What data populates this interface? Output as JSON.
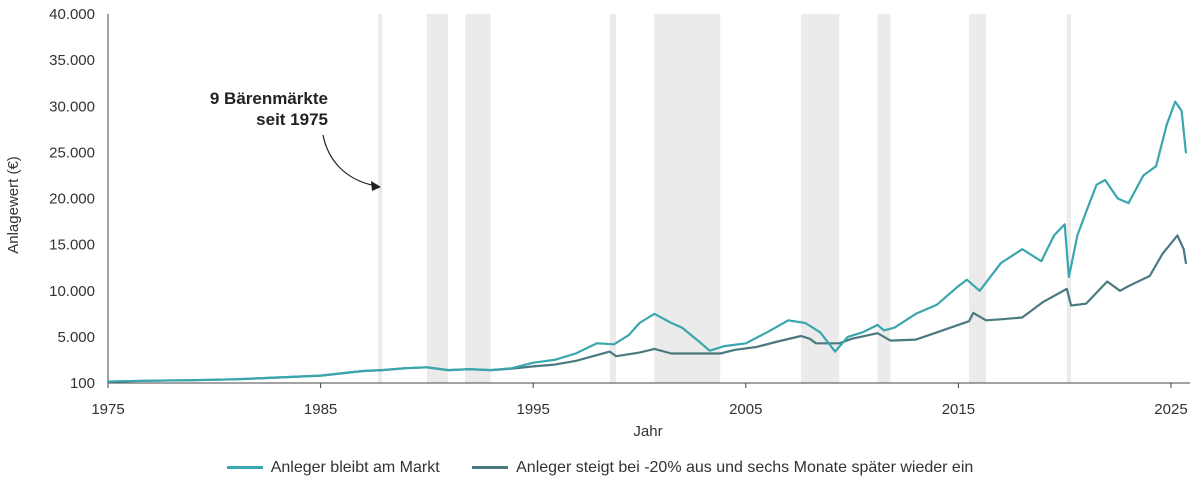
{
  "chart_data": {
    "type": "line",
    "xlabel": "Jahr",
    "ylabel": "Anlagewert (€)",
    "xlim": [
      1975,
      2025.8
    ],
    "ylim": [
      0,
      40000
    ],
    "x_ticks": [
      1975,
      1985,
      1995,
      2005,
      2015,
      2025
    ],
    "y_ticks": [
      {
        "value": 100,
        "label": "100"
      },
      {
        "value": 5000,
        "label": "5.000"
      },
      {
        "value": 10000,
        "label": "10.000"
      },
      {
        "value": 15000,
        "label": "15.000"
      },
      {
        "value": 20000,
        "label": "20.000"
      },
      {
        "value": 25000,
        "label": "25.000"
      },
      {
        "value": 30000,
        "label": "30.000"
      },
      {
        "value": 35000,
        "label": "35.000"
      },
      {
        "value": 40000,
        "label": "40.000"
      }
    ],
    "bear_markets": [
      [
        1987.7,
        1987.9
      ],
      [
        1990.0,
        1991.0
      ],
      [
        1991.8,
        1993.0
      ],
      [
        1998.6,
        1998.9
      ],
      [
        2000.7,
        2003.8
      ],
      [
        2007.6,
        2009.4
      ],
      [
        2011.2,
        2011.8
      ],
      [
        2015.5,
        2016.3
      ],
      [
        2020.1,
        2020.3
      ]
    ],
    "annotation": {
      "lines": [
        "9 Bärenmärkte",
        "seit 1975"
      ]
    },
    "series": [
      {
        "name": "Anleger bleibt am Markt",
        "color": "#3aa6ad",
        "x": [
          1975,
          1977,
          1979,
          1981,
          1983,
          1985,
          1987,
          1987.9,
          1989,
          1990,
          1991,
          1992,
          1993,
          1994,
          1995,
          1996,
          1997,
          1998,
          1998.8,
          1999.5,
          2000,
          2000.7,
          2001.5,
          2002,
          2002.8,
          2003.3,
          2004,
          2005,
          2006,
          2007,
          2007.8,
          2008.5,
          2009.2,
          2009.8,
          2010.5,
          2011.2,
          2011.5,
          2012,
          2013,
          2014,
          2015,
          2015.4,
          2016,
          2017,
          2018,
          2018.9,
          2019.5,
          2020.0,
          2020.2,
          2020.6,
          2021,
          2021.5,
          2021.9,
          2022.5,
          2023,
          2023.7,
          2024.3,
          2024.8,
          2025.2,
          2025.5,
          2025.7
        ],
        "y": [
          150,
          250,
          300,
          400,
          600,
          800,
          1300,
          1400,
          1600,
          1700,
          1400,
          1500,
          1400,
          1600,
          2200,
          2500,
          3200,
          4300,
          4200,
          5200,
          6500,
          7500,
          6500,
          6000,
          4500,
          3500,
          4000,
          4300,
          5500,
          6800,
          6500,
          5500,
          3400,
          5000,
          5500,
          6300,
          5700,
          6000,
          7500,
          8500,
          10500,
          11200,
          10000,
          13000,
          14500,
          13200,
          16000,
          17200,
          11500,
          16000,
          18500,
          21500,
          22000,
          20000,
          19500,
          22500,
          23500,
          28000,
          30500,
          29500,
          25000
        ]
      },
      {
        "name": "Anleger steigt bei -20% aus und sechs Monate später wieder ein",
        "color": "#4a7a80",
        "x": [
          1975,
          1977,
          1979,
          1981,
          1983,
          1985,
          1987,
          1987.9,
          1989,
          1990,
          1991,
          1992,
          1993,
          1994,
          1995,
          1996,
          1997,
          1998.6,
          1998.9,
          2000,
          2000.7,
          2001.5,
          2003.8,
          2004.5,
          2005.5,
          2006.5,
          2007.6,
          2008.0,
          2008.3,
          2009.4,
          2010,
          2011.2,
          2011.8,
          2013,
          2014,
          2015.5,
          2015.7,
          2016.3,
          2017,
          2018,
          2019,
          2020.1,
          2020.3,
          2021,
          2022,
          2022.6,
          2023,
          2024,
          2024.6,
          2025.3,
          2025.6,
          2025.7
        ],
        "y": [
          150,
          250,
          300,
          400,
          600,
          800,
          1300,
          1400,
          1600,
          1700,
          1400,
          1500,
          1400,
          1550,
          1800,
          2000,
          2400,
          3400,
          2900,
          3300,
          3700,
          3200,
          3200,
          3600,
          3900,
          4500,
          5100,
          4800,
          4300,
          4300,
          4800,
          5400,
          4600,
          4700,
          5500,
          6700,
          7600,
          6800,
          6900,
          7100,
          8800,
          10200,
          8400,
          8600,
          11000,
          10000,
          10500,
          11600,
          14000,
          16000,
          14500,
          13000
        ]
      }
    ]
  },
  "legend": {
    "items": [
      {
        "label": "Anleger bleibt am Markt",
        "color": "#3aa6ad"
      },
      {
        "label": "Anleger steigt bei -20% aus und sechs Monate später wieder ein",
        "color": "#4a7a80"
      }
    ]
  }
}
